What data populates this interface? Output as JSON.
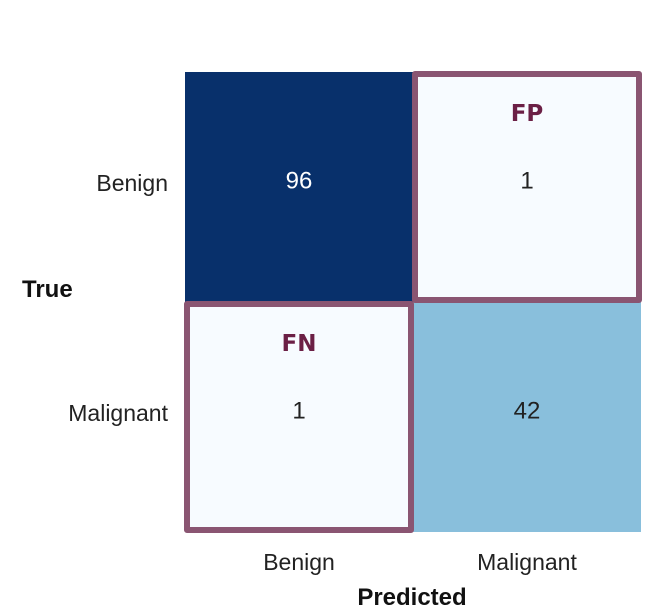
{
  "chart_data": {
    "type": "heatmap",
    "title": "",
    "xlabel": "Predicted",
    "ylabel": "True",
    "x_categories": [
      "Benign",
      "Malignant"
    ],
    "y_categories": [
      "Benign",
      "Malignant"
    ],
    "values": [
      [
        96,
        1
      ],
      [
        1,
        42
      ]
    ],
    "colormap": "Blues",
    "colorbar": false,
    "grid": false,
    "annotations": [
      {
        "label": "FP",
        "row": 0,
        "col": 1
      },
      {
        "label": "FN",
        "row": 1,
        "col": 0
      }
    ]
  },
  "colors": {
    "highlight": "#8a5572",
    "highlight_text": "#6b1f45",
    "dark_text": "#ffffff",
    "light_text": "#222222",
    "cell_max": "#08306b",
    "cell_mid": "#77b6d6",
    "cell_min": "#f7fbff"
  }
}
